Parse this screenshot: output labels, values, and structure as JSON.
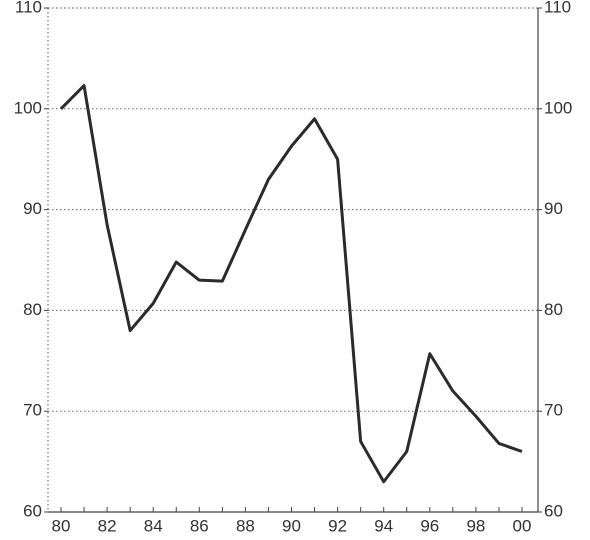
{
  "chart_data": {
    "type": "line",
    "categories": [
      "80",
      null,
      "82",
      null,
      "84",
      null,
      "86",
      null,
      "88",
      null,
      "90",
      null,
      "92",
      null,
      "94",
      null,
      "96",
      null,
      "98",
      null,
      "00"
    ],
    "series": [
      {
        "color": "#2b2b2b",
        "values": [
          100,
          102.3,
          88.5,
          78,
          80.7,
          84.8,
          83,
          82.9,
          88,
          93,
          96.3,
          99,
          95,
          67,
          63,
          66,
          75.7,
          72,
          69.5,
          66.8,
          66
        ]
      }
    ],
    "ylim": [
      60,
      110
    ],
    "yticks": [
      60,
      70,
      80,
      90,
      100,
      110
    ],
    "y2lim": [
      60,
      110
    ],
    "y2ticks": [
      60,
      70,
      80,
      90,
      100,
      110
    ],
    "grid": true
  }
}
